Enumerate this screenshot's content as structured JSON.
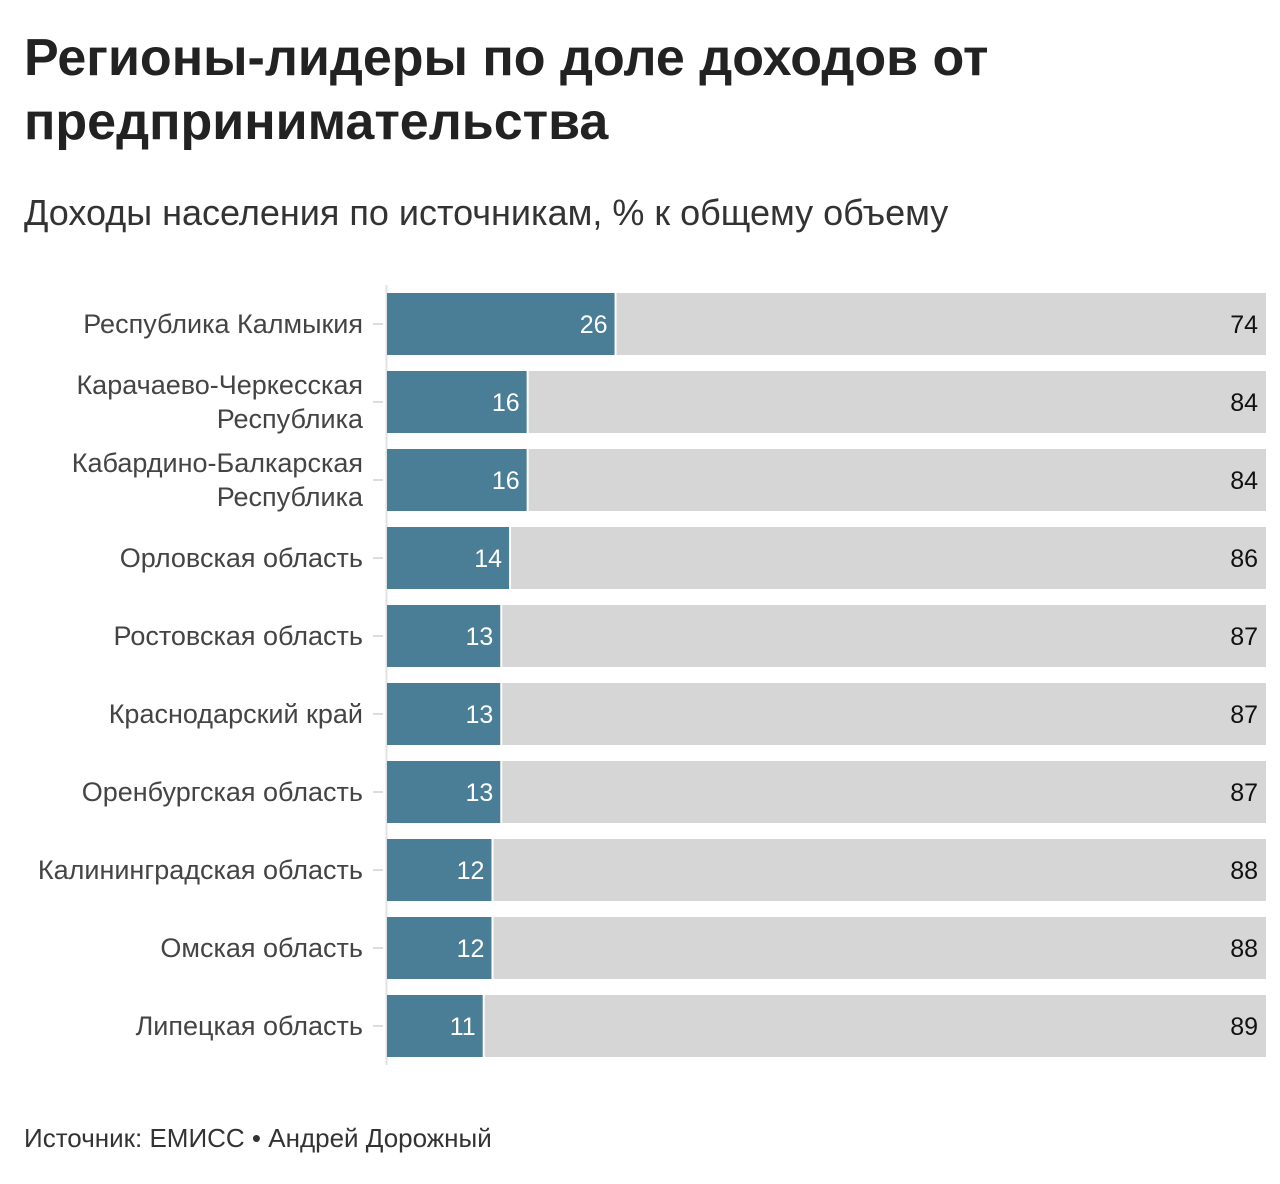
{
  "title": "Регионы-лидеры по доле доходов от предпринимательства",
  "subtitle": "Доходы населения по источникам, % к общему объему",
  "source": {
    "label": "Источник: ЕМИСС",
    "separator": "•",
    "author": "Андрей Дорожный"
  },
  "colors": {
    "business_income": "#4a7d96",
    "other_income": "#d6d6d6",
    "inner_label": "#ffffff",
    "outer_label": "#111111",
    "category_label": "#444444"
  },
  "chart_data": {
    "type": "bar",
    "orientation": "horizontal",
    "stacked": true,
    "xlim": [
      0,
      100
    ],
    "grid": false,
    "legend": "none",
    "categories": [
      [
        "Республика Калмыкия"
      ],
      [
        "Карачаево-Черкесская",
        "Республика"
      ],
      [
        "Кабардино-Балкарская",
        "Республика"
      ],
      [
        "Орловская область"
      ],
      [
        "Ростовская область"
      ],
      [
        "Краснодарский край"
      ],
      [
        "Оренбургская область"
      ],
      [
        "Калининградская область"
      ],
      [
        "Омская область"
      ],
      [
        "Липецкая область"
      ]
    ],
    "series": [
      {
        "values": [
          26,
          16,
          16,
          14,
          13,
          13,
          13,
          12,
          12,
          11
        ]
      },
      {
        "values": [
          74,
          84,
          84,
          86,
          87,
          87,
          87,
          88,
          88,
          89
        ]
      }
    ]
  }
}
